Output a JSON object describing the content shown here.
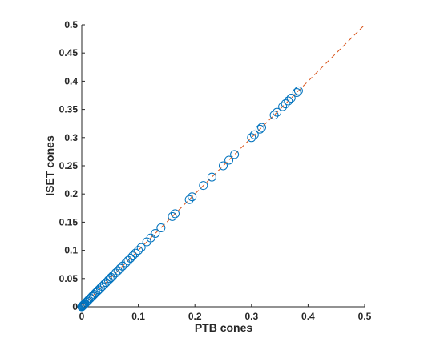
{
  "chart_data": {
    "type": "scatter",
    "xlabel": "PTB cones",
    "ylabel": "ISET cones",
    "xlim": [
      0,
      0.5
    ],
    "ylim": [
      0,
      0.5
    ],
    "xticks": [
      "0",
      "0.1",
      "0.2",
      "0.3",
      "0.4",
      "0.5"
    ],
    "yticks": [
      "0",
      "0.05",
      "0.1",
      "0.15",
      "0.2",
      "0.25",
      "0.3",
      "0.35",
      "0.4",
      "0.45",
      "0.5"
    ],
    "grid": false,
    "legend": "none",
    "colors": {
      "marker": "#0072bd",
      "reference_line": "#d95319",
      "axis": "#262626"
    },
    "series": [
      {
        "marker": "circle",
        "x": [
          0.0,
          0.001,
          0.002,
          0.003,
          0.004,
          0.005,
          0.006,
          0.008,
          0.01,
          0.012,
          0.015,
          0.018,
          0.02,
          0.022,
          0.025,
          0.028,
          0.03,
          0.033,
          0.036,
          0.04,
          0.043,
          0.047,
          0.05,
          0.052,
          0.055,
          0.06,
          0.064,
          0.068,
          0.072,
          0.078,
          0.082,
          0.086,
          0.09,
          0.095,
          0.1,
          0.105,
          0.115,
          0.122,
          0.13,
          0.14,
          0.16,
          0.165,
          0.19,
          0.195,
          0.215,
          0.23,
          0.25,
          0.26,
          0.27,
          0.3,
          0.305,
          0.315,
          0.318,
          0.34,
          0.345,
          0.355,
          0.36,
          0.365,
          0.37,
          0.38,
          0.383
        ],
        "y": [
          0.0,
          0.001,
          0.002,
          0.003,
          0.004,
          0.005,
          0.006,
          0.008,
          0.01,
          0.012,
          0.015,
          0.018,
          0.02,
          0.022,
          0.025,
          0.028,
          0.03,
          0.033,
          0.036,
          0.04,
          0.043,
          0.047,
          0.05,
          0.052,
          0.055,
          0.06,
          0.064,
          0.068,
          0.072,
          0.078,
          0.082,
          0.086,
          0.09,
          0.095,
          0.1,
          0.105,
          0.115,
          0.122,
          0.13,
          0.14,
          0.16,
          0.165,
          0.19,
          0.195,
          0.215,
          0.23,
          0.25,
          0.26,
          0.27,
          0.3,
          0.305,
          0.315,
          0.318,
          0.34,
          0.345,
          0.355,
          0.36,
          0.365,
          0.37,
          0.38,
          0.383
        ]
      }
    ],
    "reference_line": {
      "style": "dashed",
      "x": [
        0,
        0.5
      ],
      "y": [
        0,
        0.5
      ]
    }
  }
}
